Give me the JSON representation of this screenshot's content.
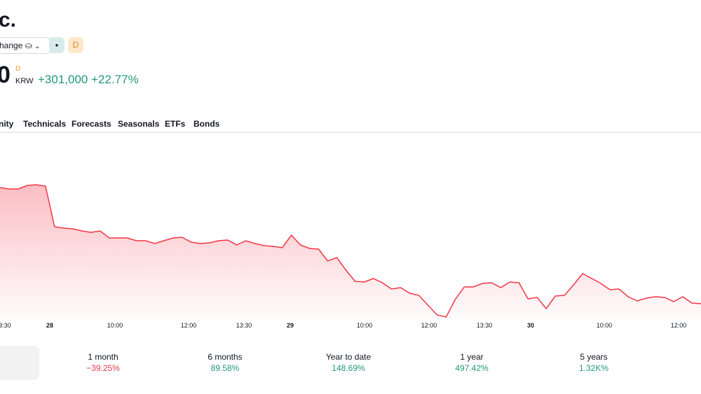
{
  "header": {
    "title": "c.",
    "exchange_button": "hange ⛀",
    "badge_dot": "●",
    "badge_d": "D",
    "price": "0",
    "price_flag": "D",
    "currency": "KRW",
    "change": "+301,000",
    "change_percent": "+22.77%"
  },
  "tabs": [
    "nity",
    "Technicals",
    "Forecasts",
    "Seasonals",
    "ETFs",
    "Bonds"
  ],
  "chart": {
    "type": "area",
    "color": "#f23645",
    "ylim": [
      0,
      265
    ],
    "values": [
      187,
      185,
      185,
      190,
      191,
      189,
      131,
      129,
      128,
      125,
      123,
      125,
      115,
      115,
      115,
      111,
      111,
      107,
      111,
      115,
      116,
      109,
      107,
      108,
      111,
      112,
      105,
      111,
      107,
      104,
      103,
      101,
      119,
      105,
      100,
      99,
      82,
      87,
      69,
      53,
      52,
      57,
      51,
      42,
      44,
      36,
      33,
      19,
      5,
      2,
      27,
      45,
      45,
      50,
      51,
      44,
      52,
      51,
      28,
      30,
      14,
      32,
      33,
      48,
      64,
      57,
      50,
      41,
      42,
      31,
      25,
      29,
      31,
      30,
      24,
      31,
      22,
      21
    ],
    "x_labels": [
      "3:30",
      "28",
      "10:00",
      "12:00",
      "13:30",
      "29",
      "10:00",
      "12:00",
      "13:30",
      "30",
      "10:00",
      "12:00"
    ]
  },
  "performance": [
    {
      "period": "1 month",
      "value": "−39.25%",
      "color": "#e03a4a"
    },
    {
      "period": "6 months",
      "value": "89.58%",
      "color": "#22997a"
    },
    {
      "period": "Year to date",
      "value": "148.69%",
      "color": "#22997a"
    },
    {
      "period": "1 year",
      "value": "497.42%",
      "color": "#22997a"
    },
    {
      "period": "5 years",
      "value": "1.32K%",
      "color": "#22997a"
    }
  ]
}
